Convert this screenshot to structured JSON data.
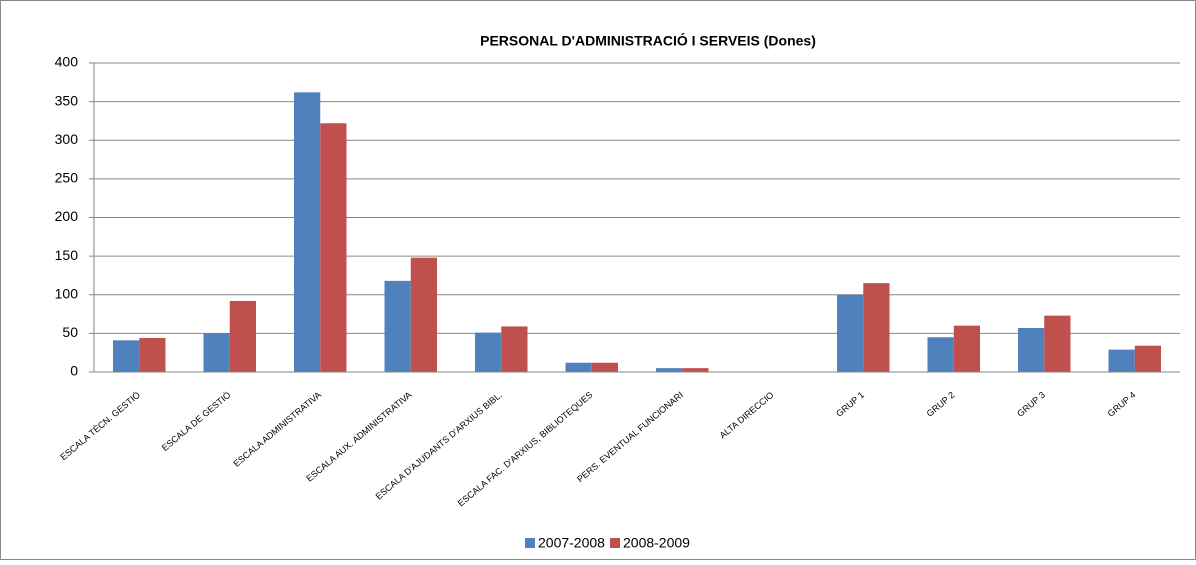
{
  "chart_data": {
    "type": "bar",
    "title": "PERSONAL  D'ADMINISTRACIÓ  I SERVEIS (Dones)",
    "categories": [
      "ESCALA TÈCN. GESTIÓ",
      "ESCALA DE GESTIÓ",
      "ESCALA ADMINISTRATIVA",
      "ESCALA AUX. ADMINISTRATIVA",
      "ESCALA D'AJUDANTS D'ARXIUS BIBL.",
      "ESCALA FAC. D'ARXIUS, BIBLIOTEQUES",
      "PERS. EVENTUAL FUNCIONARI",
      "ALTA DIRECCIO",
      "GRUP 1",
      "GRUP 2",
      "GRUP 3",
      "GRUP 4"
    ],
    "series": [
      {
        "name": "2007-2008",
        "color": "#4f81bd",
        "values": [
          41,
          50,
          362,
          118,
          51,
          12,
          5,
          0,
          100,
          45,
          57,
          29
        ]
      },
      {
        "name": "2008-2009",
        "color": "#c0504d",
        "values": [
          44,
          92,
          322,
          148,
          59,
          12,
          5,
          0,
          115,
          60,
          73,
          34
        ]
      }
    ],
    "ylim": [
      0,
      400
    ],
    "yticks": [
      0,
      50,
      100,
      150,
      200,
      250,
      300,
      350,
      400
    ],
    "grid": true,
    "legend": "bottom"
  }
}
